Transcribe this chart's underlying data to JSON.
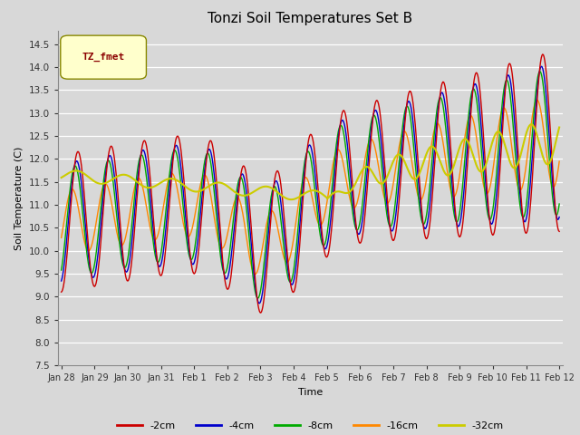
{
  "title": "Tonzi Soil Temperatures Set B",
  "xlabel": "Time",
  "ylabel": "Soil Temperature (C)",
  "ylim": [
    7.5,
    14.8
  ],
  "yticks": [
    7.5,
    8.0,
    8.5,
    9.0,
    9.5,
    10.0,
    10.5,
    11.0,
    11.5,
    12.0,
    12.5,
    13.0,
    13.5,
    14.0,
    14.5
  ],
  "colors": {
    "-2cm": "#cc0000",
    "-4cm": "#0000cc",
    "-8cm": "#00aa00",
    "-16cm": "#ff8800",
    "-32cm": "#cccc00"
  },
  "legend_label": "TZ_fmet",
  "legend_box_color": "#ffffcc",
  "legend_text_color": "#8b0000",
  "bg_color": "#d8d8d8",
  "n_days": 15,
  "n_points_per_day": 48
}
